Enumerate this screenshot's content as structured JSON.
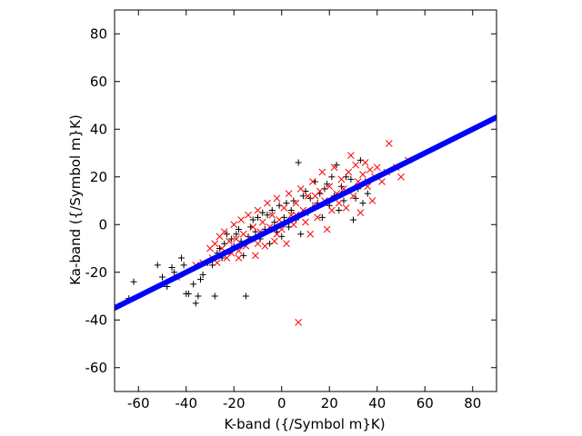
{
  "chart_data": {
    "type": "scatter",
    "title": "",
    "xlabel": "K-band ({/Symbol m}K)",
    "ylabel": "Ka-band ({/Symbol m}K)",
    "xlim": [
      -70,
      90
    ],
    "ylim": [
      -70,
      90
    ],
    "xticks": [
      -60,
      -40,
      -20,
      0,
      20,
      40,
      60,
      80
    ],
    "yticks": [
      -60,
      -40,
      -20,
      0,
      20,
      40,
      60,
      80
    ],
    "xtick_labels": [
      "-60",
      "-40",
      "-20",
      "0",
      "20",
      "40",
      "60",
      "80"
    ],
    "ytick_labels": [
      "-60",
      "-40",
      "-20",
      "0",
      "20",
      "40",
      "60",
      "80"
    ],
    "grid": false,
    "legend": "none",
    "series": [
      {
        "marker": "plus",
        "color": "#000000",
        "points": [
          [
            -64,
            -31
          ],
          [
            -62,
            -24
          ],
          [
            -52,
            -17
          ],
          [
            -50,
            -22
          ],
          [
            -48,
            -26
          ],
          [
            -46,
            -18
          ],
          [
            -45,
            -20
          ],
          [
            -44,
            -22
          ],
          [
            -42,
            -14
          ],
          [
            -41,
            -17
          ],
          [
            -40,
            -29
          ],
          [
            -39,
            -29
          ],
          [
            -37,
            -25
          ],
          [
            -36,
            -33
          ],
          [
            -35,
            -30
          ],
          [
            -34,
            -23
          ],
          [
            -33,
            -21
          ],
          [
            -31,
            -16
          ],
          [
            -30,
            -15
          ],
          [
            -29,
            -17
          ],
          [
            -28,
            -30
          ],
          [
            -27,
            -12
          ],
          [
            -26,
            -10
          ],
          [
            -25,
            -14
          ],
          [
            -24,
            -8
          ],
          [
            -23,
            -4
          ],
          [
            -22,
            -12
          ],
          [
            -21,
            -6
          ],
          [
            -20,
            -9
          ],
          [
            -19,
            -4
          ],
          [
            -18,
            -2
          ],
          [
            -17,
            -7
          ],
          [
            -16,
            -13
          ],
          [
            -15,
            -30
          ],
          [
            -14,
            -5
          ],
          [
            -13,
            -1
          ],
          [
            -12,
            2
          ],
          [
            -11,
            -3
          ],
          [
            -10,
            3
          ],
          [
            -9,
            -6
          ],
          [
            -8,
            5
          ],
          [
            -7,
            -2
          ],
          [
            -6,
            4
          ],
          [
            -5,
            -8
          ],
          [
            -4,
            6
          ],
          [
            -3,
            1
          ],
          [
            -2,
            -3
          ],
          [
            -1,
            8
          ],
          [
            0,
            -5
          ],
          [
            1,
            3
          ],
          [
            2,
            9
          ],
          [
            3,
            -1
          ],
          [
            4,
            6
          ],
          [
            5,
            10
          ],
          [
            6,
            2
          ],
          [
            7,
            26
          ],
          [
            8,
            -4
          ],
          [
            9,
            12
          ],
          [
            10,
            14
          ],
          [
            11,
            5
          ],
          [
            12,
            11
          ],
          [
            13,
            7
          ],
          [
            14,
            18
          ],
          [
            15,
            9
          ],
          [
            16,
            13
          ],
          [
            17,
            3
          ],
          [
            18,
            15
          ],
          [
            19,
            17
          ],
          [
            20,
            8
          ],
          [
            21,
            20
          ],
          [
            22,
            12
          ],
          [
            23,
            25
          ],
          [
            24,
            6
          ],
          [
            25,
            16
          ],
          [
            26,
            10
          ],
          [
            27,
            20
          ],
          [
            28,
            14
          ],
          [
            29,
            19
          ],
          [
            30,
            2
          ],
          [
            31,
            11
          ],
          [
            32,
            15
          ],
          [
            33,
            27
          ],
          [
            34,
            9
          ],
          [
            35,
            18
          ],
          [
            36,
            13
          ]
        ]
      },
      {
        "marker": "cross",
        "color": "#ff0000",
        "points": [
          [
            -44,
            -22
          ],
          [
            -36,
            -17
          ],
          [
            -33,
            -16
          ],
          [
            -30,
            -10
          ],
          [
            -29,
            -14
          ],
          [
            -28,
            -8
          ],
          [
            -27,
            -16
          ],
          [
            -26,
            -5
          ],
          [
            -25,
            -10
          ],
          [
            -24,
            -3
          ],
          [
            -23,
            -14
          ],
          [
            -22,
            -7
          ],
          [
            -21,
            -12
          ],
          [
            -20,
            0
          ],
          [
            -19,
            -6
          ],
          [
            -18,
            -11
          ],
          [
            -17,
            2
          ],
          [
            -16,
            -4
          ],
          [
            -15,
            -9
          ],
          [
            -14,
            4
          ],
          [
            -13,
            -6
          ],
          [
            -12,
            -1
          ],
          [
            -11,
            -13
          ],
          [
            -10,
            6
          ],
          [
            -9,
            -3
          ],
          [
            -8,
            1
          ],
          [
            -7,
            -9
          ],
          [
            -6,
            9
          ],
          [
            -5,
            -1
          ],
          [
            -4,
            4
          ],
          [
            -3,
            -7
          ],
          [
            -2,
            11
          ],
          [
            -1,
            2
          ],
          [
            0,
            -2
          ],
          [
            1,
            7
          ],
          [
            2,
            -8
          ],
          [
            3,
            13
          ],
          [
            4,
            4
          ],
          [
            5,
            0
          ],
          [
            6,
            9
          ],
          [
            7,
            -41
          ],
          [
            8,
            15
          ],
          [
            9,
            6
          ],
          [
            10,
            1
          ],
          [
            11,
            12
          ],
          [
            12,
            -4
          ],
          [
            13,
            18
          ],
          [
            14,
            8
          ],
          [
            15,
            3
          ],
          [
            16,
            14
          ],
          [
            17,
            22
          ],
          [
            18,
            10
          ],
          [
            19,
            -2
          ],
          [
            20,
            16
          ],
          [
            21,
            6
          ],
          [
            22,
            24
          ],
          [
            23,
            13
          ],
          [
            24,
            9
          ],
          [
            25,
            19
          ],
          [
            26,
            15
          ],
          [
            27,
            7
          ],
          [
            28,
            22
          ],
          [
            29,
            29
          ],
          [
            30,
            12
          ],
          [
            31,
            25
          ],
          [
            32,
            18
          ],
          [
            33,
            5
          ],
          [
            34,
            21
          ],
          [
            35,
            26
          ],
          [
            36,
            16
          ],
          [
            37,
            23
          ],
          [
            38,
            10
          ],
          [
            39,
            20
          ],
          [
            40,
            24
          ],
          [
            42,
            18
          ],
          [
            44,
            22
          ],
          [
            45,
            34
          ],
          [
            48,
            24
          ],
          [
            50,
            20
          ],
          [
            53,
            27
          ],
          [
            -18,
            -14
          ],
          [
            -10,
            -8
          ],
          [
            -2,
            -4
          ],
          [
            6,
            4
          ],
          [
            14,
            12
          ]
        ]
      },
      {
        "name": "",
        "marker": "line",
        "color": "#0000ff",
        "points": [
          [
            -70,
            -35
          ],
          [
            90,
            45
          ]
        ]
      }
    ]
  }
}
